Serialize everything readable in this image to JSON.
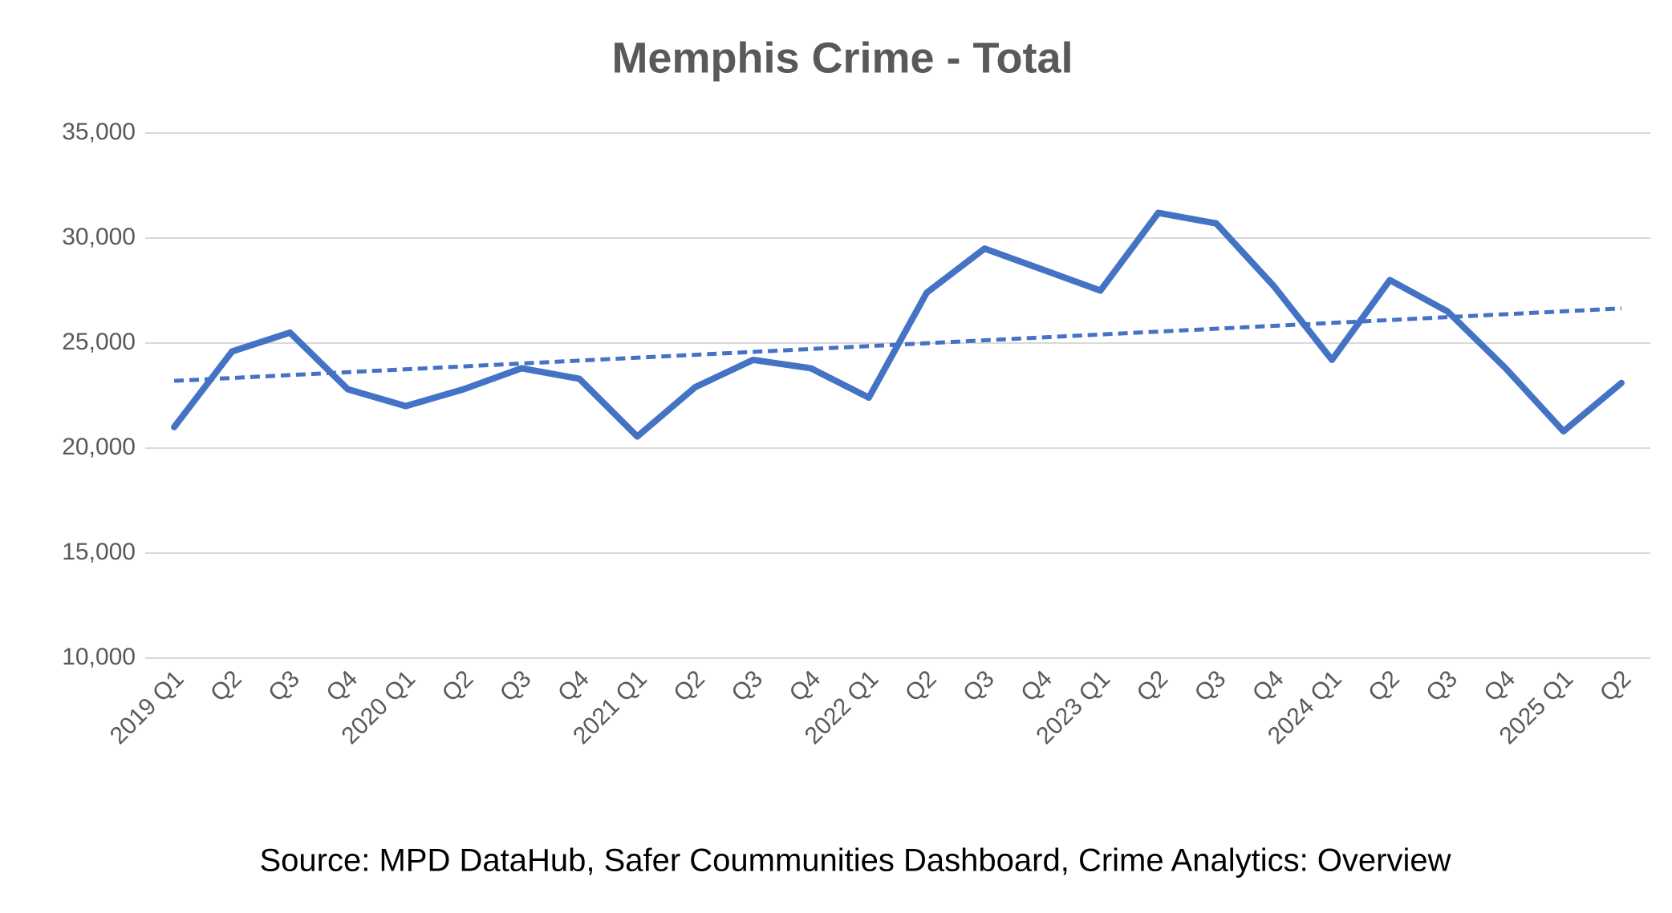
{
  "chart_data": {
    "type": "line",
    "title": "Memphis Crime - Total",
    "categories": [
      "2019 Q1",
      "Q2",
      "Q3",
      "Q4",
      "2020 Q1",
      "Q2",
      "Q3",
      "Q4",
      "2021 Q1",
      "Q2",
      "Q3",
      "Q4",
      "2022 Q1",
      "Q2",
      "Q3",
      "Q4",
      "2023 Q1",
      "Q2",
      "Q3",
      "Q4",
      "2024 Q1",
      "Q2",
      "Q3",
      "Q4",
      "2025 Q1",
      "Q2"
    ],
    "series": [
      {
        "name": "Total",
        "color": "#4472c4",
        "values": [
          21000,
          24600,
          25500,
          22800,
          22000,
          22800,
          23800,
          23300,
          20550,
          22900,
          24200,
          23800,
          22400,
          27400,
          29500,
          28500,
          27500,
          31200,
          30700,
          27700,
          24200,
          28000,
          26500,
          23800,
          20800,
          23100
        ]
      }
    ],
    "trendline": {
      "color": "#4472c4",
      "values": [
        23200,
        26650
      ]
    },
    "ylim": [
      10000,
      35000
    ],
    "yticks": [
      {
        "value": 10000,
        "label": "10,000"
      },
      {
        "value": 15000,
        "label": "15,000"
      },
      {
        "value": 20000,
        "label": "20,000"
      },
      {
        "value": 25000,
        "label": "25,000"
      },
      {
        "value": 30000,
        "label": "30,000"
      },
      {
        "value": 35000,
        "label": "35,000"
      }
    ],
    "grid": true,
    "source": "Source: MPD DataHub, Safer Coummunities Dashboard,  Crime Analytics: Overview"
  }
}
